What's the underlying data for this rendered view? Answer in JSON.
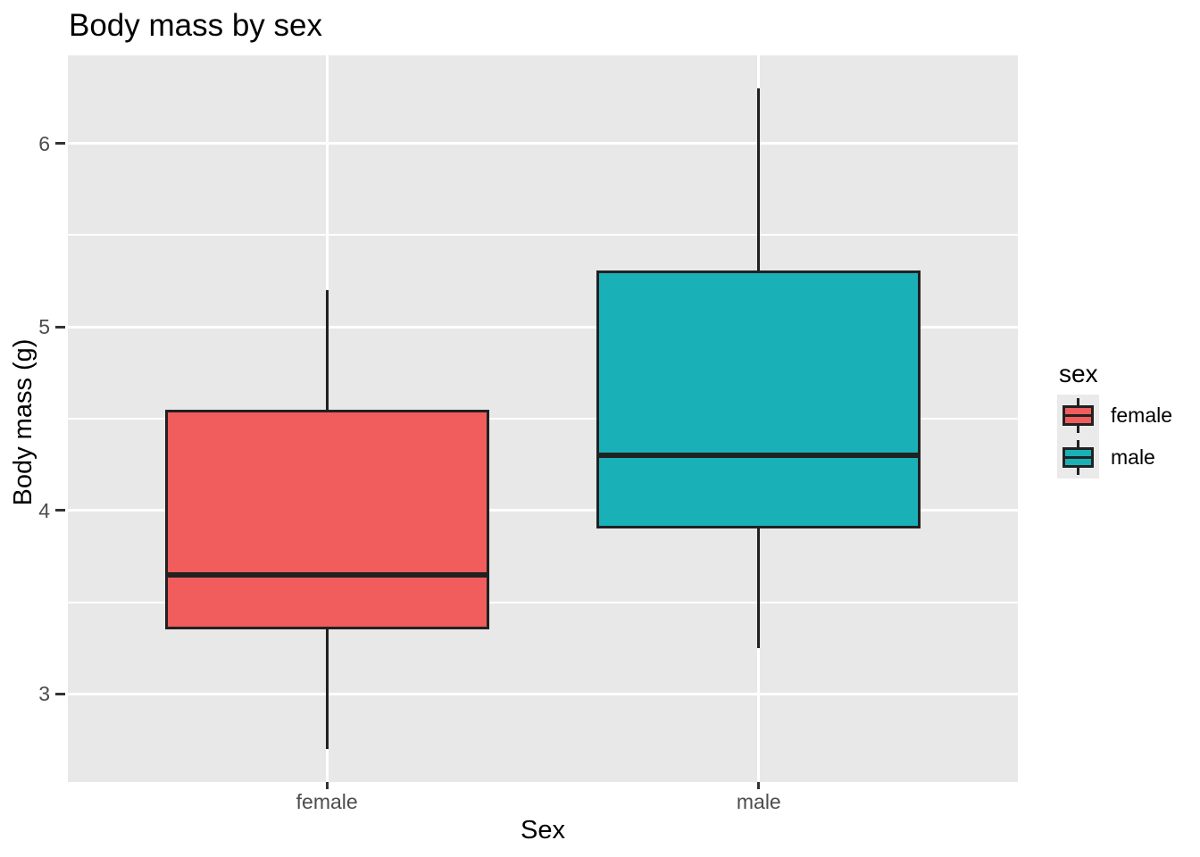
{
  "chart_data": {
    "type": "boxplot",
    "title": "Body mass by sex",
    "xlabel": "Sex",
    "ylabel": "Body mass (g)",
    "categories": [
      "female",
      "male"
    ],
    "series": [
      {
        "name": "female",
        "fill": "#F15C5C",
        "min": 2.7,
        "q1": 3.35,
        "median": 3.65,
        "q3": 4.55,
        "max": 5.2
      },
      {
        "name": "male",
        "fill": "#19B1B7",
        "min": 3.25,
        "q1": 3.9,
        "median": 4.3,
        "q3": 5.31,
        "max": 6.3
      }
    ],
    "ylim": [
      2.52,
      6.48
    ],
    "yticks": [
      6,
      5,
      4,
      3
    ],
    "yminor": [
      5.5,
      4.5,
      3.5
    ],
    "grid": "on",
    "legend": {
      "title": "sex",
      "position": "right",
      "entries": [
        "female",
        "male"
      ]
    },
    "colors": {
      "panel_bg": "#E8E8E8",
      "grid": "#FFFFFF",
      "box_border": "#212121",
      "axis_text": "#4D4D4D",
      "tick_mark": "#333333",
      "legend_key_bg": "#EAEAEA",
      "title_text": "#000000"
    }
  }
}
